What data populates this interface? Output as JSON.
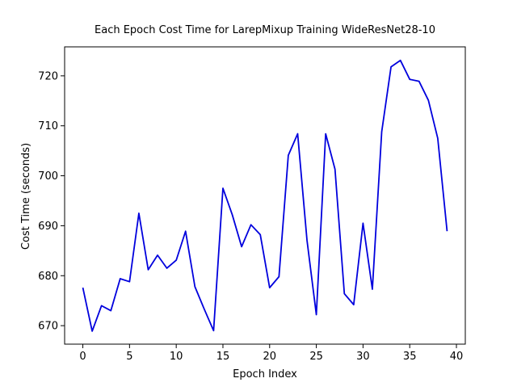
{
  "chart_data": {
    "type": "line",
    "title": "Each Epoch Cost Time for LarepMixup Training WideResNet28-10",
    "xlabel": "Epoch Index",
    "ylabel": "Cost Time (seconds)",
    "xlim": [
      -1.95,
      40.95
    ],
    "ylim": [
      666.3,
      725.8
    ],
    "xticks": [
      0,
      5,
      10,
      15,
      20,
      25,
      30,
      35,
      40
    ],
    "yticks": [
      670,
      680,
      690,
      700,
      710,
      720
    ],
    "grid": false,
    "legend": "none",
    "series": [
      {
        "color": "#0000dd",
        "x": [
          0,
          1,
          2,
          3,
          4,
          5,
          6,
          7,
          8,
          9,
          10,
          11,
          12,
          13,
          14,
          15,
          16,
          17,
          18,
          19,
          20,
          21,
          22,
          23,
          24,
          25,
          26,
          27,
          28,
          29,
          30,
          31,
          32,
          33,
          34,
          35,
          36,
          37,
          38,
          39
        ],
        "values": [
          677.6,
          668.9,
          674.0,
          673.0,
          679.4,
          678.8,
          692.5,
          681.2,
          684.1,
          681.5,
          683.1,
          688.9,
          677.8,
          673.3,
          669.0,
          697.5,
          692.2,
          685.8,
          690.2,
          688.2,
          677.6,
          679.8,
          704.1,
          708.4,
          687.1,
          672.2,
          708.4,
          701.3,
          676.4,
          674.2,
          690.5,
          677.3,
          708.8,
          721.8,
          723.1,
          719.3,
          718.9,
          715.1,
          707.5,
          688.9
        ]
      }
    ]
  }
}
